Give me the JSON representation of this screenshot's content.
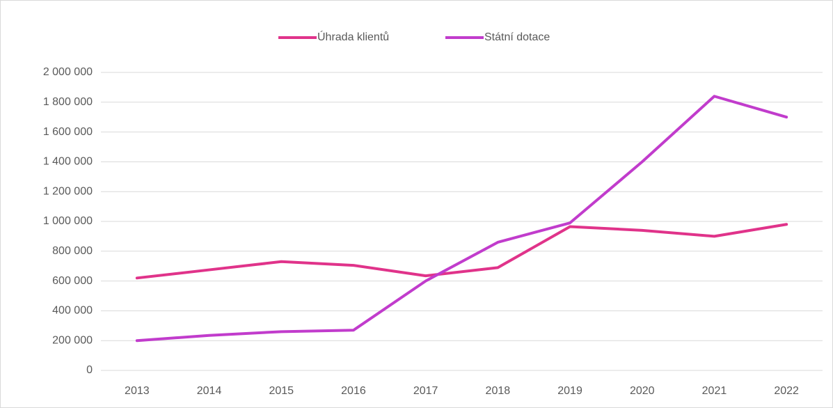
{
  "chart_data": {
    "type": "line",
    "categories": [
      "2013",
      "2014",
      "2015",
      "2016",
      "2017",
      "2018",
      "2019",
      "2020",
      "2021",
      "2022"
    ],
    "series": [
      {
        "name": "Úhrada klientů",
        "color": "#e0338a",
        "values": [
          620000,
          675000,
          730000,
          705000,
          635000,
          690000,
          965000,
          940000,
          900000,
          980000
        ]
      },
      {
        "name": "Státní dotace",
        "color": "#c13ccc",
        "values": [
          200000,
          235000,
          260000,
          270000,
          600000,
          860000,
          990000,
          1400000,
          1840000,
          1700000
        ]
      }
    ],
    "ylim": [
      0,
      2000000
    ],
    "yticks": [
      0,
      {
        "value": 200000,
        "label": "200 000"
      },
      {
        "value": 400000,
        "label": "400 000"
      },
      {
        "value": 600000,
        "label": "600 000"
      },
      {
        "value": 800000,
        "label": "800 000"
      },
      {
        "value": 1000000,
        "label": "1 000 000"
      },
      {
        "value": 1200000,
        "label": "1 200 000"
      },
      {
        "value": 1400000,
        "label": "1 400 000"
      },
      {
        "value": 1600000,
        "label": "1 600 000"
      },
      {
        "value": 1800000,
        "label": "1 800 000"
      },
      {
        "value": 2000000,
        "label": "2 000 000"
      }
    ],
    "grid": true,
    "legend": "top"
  }
}
